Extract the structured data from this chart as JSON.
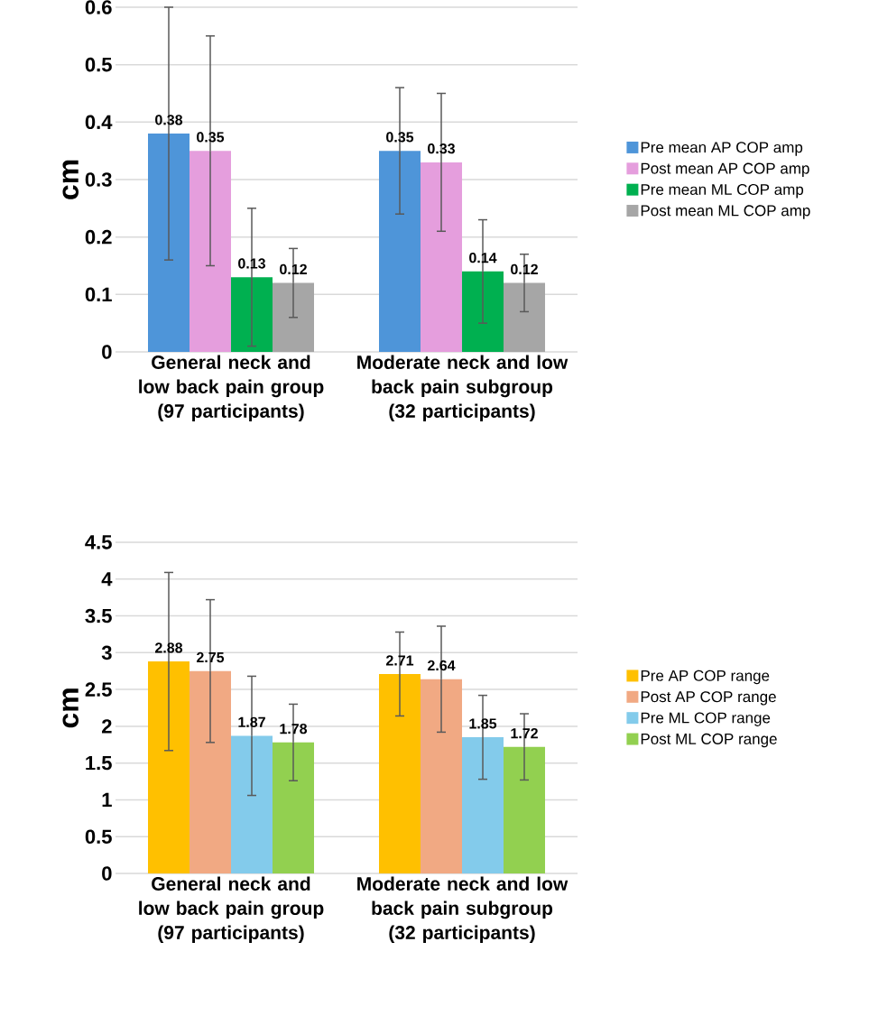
{
  "chart_data": [
    {
      "type": "bar",
      "ylabel": "cm",
      "categories": [
        "General neck and low back pain group (97 participants)",
        "Moderate neck and low back pain subgroup (32 participants)"
      ],
      "series": [
        {
          "name": "Pre mean AP COP amp",
          "color": "#4e95d9",
          "values": [
            0.38,
            0.35
          ],
          "errors": [
            0.22,
            0.11
          ]
        },
        {
          "name": "Post mean AP COP amp",
          "color": "#e59edd",
          "values": [
            0.35,
            0.33
          ],
          "errors": [
            0.2,
            0.12
          ]
        },
        {
          "name": "Pre mean ML COP amp",
          "color": "#00b050",
          "values": [
            0.13,
            0.14
          ],
          "errors": [
            0.12,
            0.09
          ]
        },
        {
          "name": "Post mean ML COP amp",
          "color": "#a6a6a6",
          "values": [
            0.12,
            0.12
          ],
          "errors": [
            0.06,
            0.05
          ]
        }
      ],
      "ylim": [
        0,
        0.6
      ],
      "yticks": [
        0,
        0.1,
        0.2,
        0.3,
        0.4,
        0.5,
        0.6
      ],
      "grid": "y",
      "legend": "right",
      "data_labels": true
    },
    {
      "type": "bar",
      "ylabel": "cm",
      "categories": [
        "General neck and low back pain group (97 participants)",
        "Moderate neck and low back pain subgroup (32 participants)"
      ],
      "series": [
        {
          "name": "Pre AP COP range",
          "color": "#ffc000",
          "values": [
            2.88,
            2.71
          ],
          "errors": [
            1.21,
            0.57
          ]
        },
        {
          "name": "Post AP COP range",
          "color": "#f1a983",
          "values": [
            2.75,
            2.64
          ],
          "errors": [
            0.97,
            0.72
          ]
        },
        {
          "name": "Pre ML COP range",
          "color": "#83cbeb",
          "values": [
            1.87,
            1.85
          ],
          "errors": [
            0.81,
            0.57
          ]
        },
        {
          "name": "Post ML COP range",
          "color": "#92d050",
          "values": [
            1.78,
            1.72
          ],
          "errors": [
            0.52,
            0.45
          ]
        }
      ],
      "ylim": [
        0,
        4.5
      ],
      "yticks": [
        0,
        0.5,
        1,
        1.5,
        2,
        2.5,
        3,
        3.5,
        4,
        4.5
      ],
      "grid": "y",
      "legend": "right",
      "data_labels": true
    }
  ]
}
